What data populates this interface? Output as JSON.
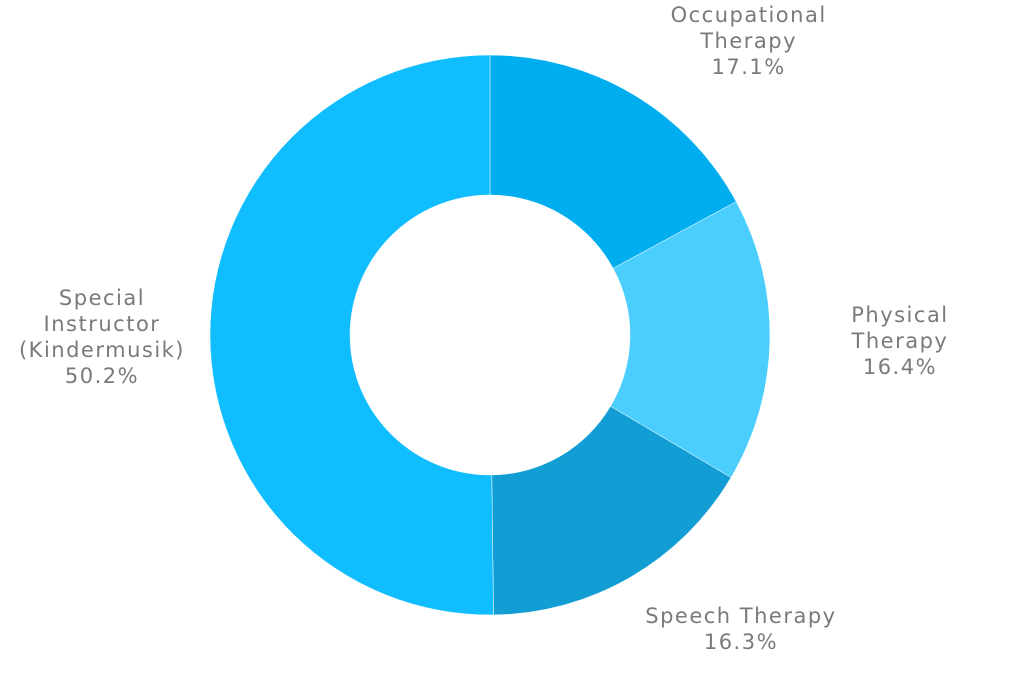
{
  "chart_data": {
    "type": "donut",
    "categories": [
      "Occupational Therapy",
      "Physical Therapy",
      "Speech Therapy",
      "Special Instructor (Kindermusik)"
    ],
    "values": [
      17.1,
      16.4,
      16.3,
      50.2
    ],
    "value_labels": [
      "17.1%",
      "16.4%",
      "16.3%",
      "50.2%"
    ],
    "colors": [
      "#00aeef",
      "#4bcdfd",
      "#129ed4",
      "#10bdff"
    ]
  }
}
